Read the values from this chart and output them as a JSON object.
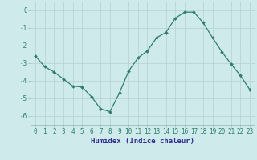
{
  "x": [
    0,
    1,
    2,
    3,
    4,
    5,
    6,
    7,
    8,
    9,
    10,
    11,
    12,
    13,
    14,
    15,
    16,
    17,
    18,
    19,
    20,
    21,
    22,
    23
  ],
  "y": [
    -2.6,
    -3.2,
    -3.5,
    -3.9,
    -4.3,
    -4.35,
    -4.9,
    -5.6,
    -5.75,
    -4.7,
    -3.45,
    -2.7,
    -2.3,
    -1.55,
    -1.25,
    -0.45,
    -0.1,
    -0.1,
    -0.7,
    -1.55,
    -2.35,
    -3.05,
    -3.7,
    -4.5
  ],
  "line_color": "#2e7d6e",
  "bg_color": "#ceeaea",
  "grid_major_color": "#b8d4d4",
  "grid_minor_color": "#d0e8e8",
  "xlabel": "Humidex (Indice chaleur)",
  "ylim": [
    -6.5,
    0.5
  ],
  "xlim": [
    -0.5,
    23.5
  ],
  "yticks": [
    0,
    -1,
    -2,
    -3,
    -4,
    -5,
    -6
  ],
  "xticks": [
    0,
    1,
    2,
    3,
    4,
    5,
    6,
    7,
    8,
    9,
    10,
    11,
    12,
    13,
    14,
    15,
    16,
    17,
    18,
    19,
    20,
    21,
    22,
    23
  ],
  "xlabel_fontsize": 6.5,
  "tick_fontsize": 5.5,
  "marker_size": 2.0,
  "line_width": 0.9,
  "tick_color": "#2e7d6e",
  "label_color": "#2e2e8e"
}
